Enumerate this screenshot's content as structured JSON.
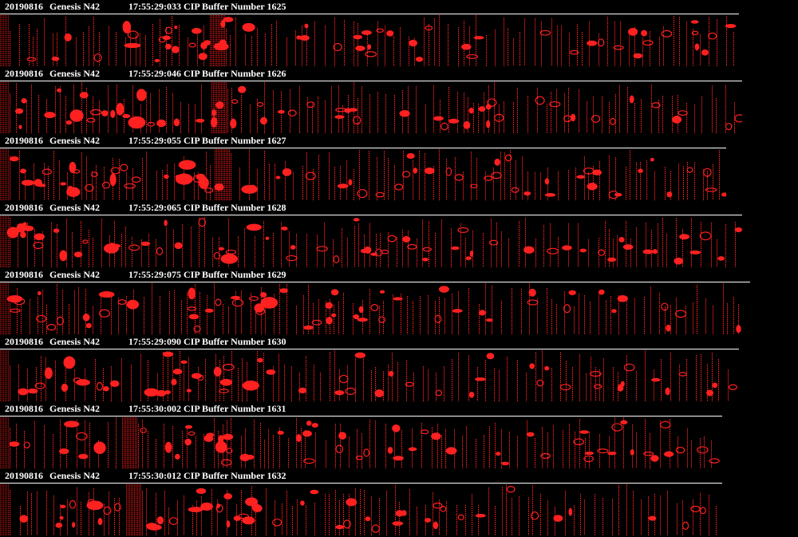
{
  "buffers": [
    {
      "date": "20190816",
      "probe": "Genesis N42",
      "info": "17:55:29:033 CIP Buffer Number 1625"
    },
    {
      "date": "20190816",
      "probe": "Genesis N42",
      "info": "17:55:29:046 CIP Buffer Number 1626"
    },
    {
      "date": "20190816",
      "probe": "Genesis N42",
      "info": "17:55:29:055 CIP Buffer Number 1627"
    },
    {
      "date": "20190816",
      "probe": "Genesis N42",
      "info": "17:55:29:065 CIP Buffer Number 1628"
    },
    {
      "date": "20190816",
      "probe": "Genesis N42",
      "info": "17:55:29:075 CIP Buffer Number 1629"
    },
    {
      "date": "20190816",
      "probe": "Genesis N42",
      "info": "17:55:29:090 CIP Buffer Number 1630"
    },
    {
      "date": "20190816",
      "probe": "Genesis N42",
      "info": "17:55:30:002 CIP Buffer Number 1631"
    },
    {
      "date": "20190816",
      "probe": "Genesis N42",
      "info": "17:55:30:012 CIP Buffer Number 1632"
    }
  ],
  "colors": {
    "background": "#000000",
    "particle": "#ff2020",
    "header_text": "#ffffff"
  }
}
